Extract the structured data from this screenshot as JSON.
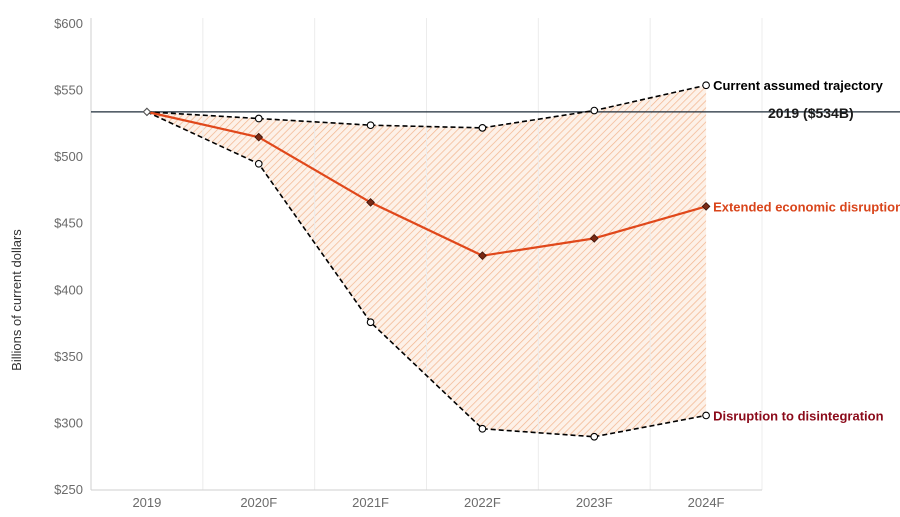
{
  "chart_data": {
    "type": "line",
    "title": "",
    "xlabel": "",
    "ylabel": "Billions of current dollars",
    "categories": [
      "2019",
      "2020F",
      "2021F",
      "2022F",
      "2023F",
      "2024F"
    ],
    "ylim": [
      250,
      600
    ],
    "yticks": [
      250,
      300,
      350,
      400,
      450,
      500,
      550,
      600
    ],
    "ytick_labels": [
      "$250",
      "$300",
      "$350",
      "$400",
      "$450",
      "$500",
      "$550",
      "$600"
    ],
    "reference_line": {
      "value": 534,
      "label": "2019 ($534B)",
      "color": "#1f2d3a"
    },
    "series": [
      {
        "name": "Current assumed trajectory",
        "values": [
          534,
          529,
          524,
          522,
          535,
          554
        ],
        "style": "dashed",
        "marker": "circle",
        "color": "#000000",
        "label_color": "#000000"
      },
      {
        "name": "Extended economic disruption",
        "values": [
          534,
          515,
          466,
          426,
          439,
          463
        ],
        "style": "solid",
        "marker": "diamond",
        "color": "#e0481b",
        "label_color": "#d9451b"
      },
      {
        "name": "Disruption to disintegration",
        "values": [
          534,
          495,
          376,
          296,
          290,
          306
        ],
        "style": "dashed",
        "marker": "circle",
        "color": "#000000",
        "label_color": "#8b0a1a"
      }
    ],
    "band": {
      "between": [
        "Current assumed trajectory",
        "Disruption to disintegration"
      ],
      "color": "#f3a97c",
      "pattern": "hatched"
    },
    "grid": {
      "vertical": true,
      "horizontal": false
    },
    "legend": "inline labels at right end of lines"
  }
}
